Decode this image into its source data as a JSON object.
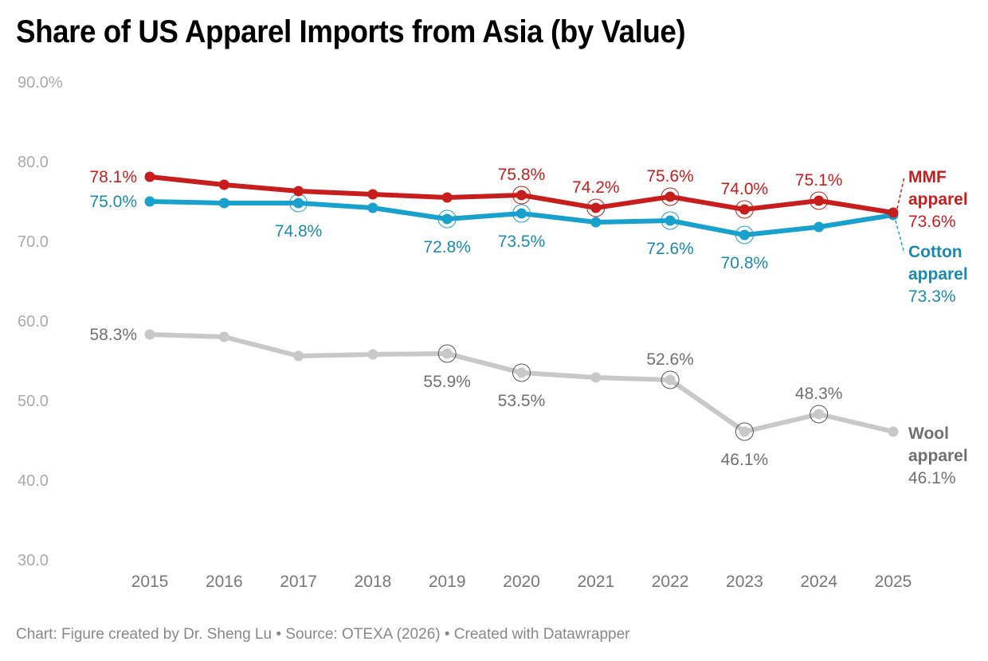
{
  "title": "Share of US Apparel Imports from Asia (by Value)",
  "footer": "Chart: Figure created by Dr. Sheng Lu • Source: OTEXA (2026) • Created with Datawrapper",
  "chart_data": {
    "type": "line",
    "title": "Share of US Apparel Imports from Asia (by Value)",
    "xlabel": "",
    "ylabel": "",
    "x": [
      "2015",
      "2016",
      "2017",
      "2018",
      "2019",
      "2020",
      "2021",
      "2022",
      "2023",
      "2024",
      "2025"
    ],
    "ylim": [
      30,
      90
    ],
    "yticks": [
      30,
      40,
      50,
      60,
      70,
      80,
      90
    ],
    "ytick_labels": [
      "30.0",
      "40.0",
      "50.0",
      "60.0",
      "70.0",
      "80.0",
      "90.0%"
    ],
    "grid": false,
    "legend": "direct labels at line ends (right)",
    "series": [
      {
        "name": "MMF apparel",
        "end_label_name": [
          "MMF",
          "apparel"
        ],
        "end_label_value": "73.6%",
        "color": "#c71e1d",
        "values": [
          78.1,
          77.1,
          76.3,
          75.9,
          75.5,
          75.8,
          74.2,
          75.6,
          74.0,
          75.1,
          73.6
        ],
        "labels": [
          {
            "index": 0,
            "text": "78.1%",
            "pos": "left"
          },
          {
            "index": 5,
            "text": "75.8%",
            "pos": "above"
          },
          {
            "index": 6,
            "text": "74.2%",
            "pos": "above"
          },
          {
            "index": 7,
            "text": "75.6%",
            "pos": "above"
          },
          {
            "index": 8,
            "text": "74.0%",
            "pos": "above"
          },
          {
            "index": 9,
            "text": "75.1%",
            "pos": "above"
          }
        ],
        "highlighted": [
          5,
          6,
          7,
          8,
          9
        ]
      },
      {
        "name": "Cotton apparel",
        "end_label_name": [
          "Cotton",
          "apparel"
        ],
        "end_label_value": "73.3%",
        "color": "#18a1cd",
        "label_color": "#1a8ab0",
        "values": [
          75.0,
          74.8,
          74.8,
          74.2,
          72.8,
          73.5,
          72.4,
          72.6,
          70.8,
          71.8,
          73.3
        ],
        "labels": [
          {
            "index": 0,
            "text": "75.0%",
            "pos": "left"
          },
          {
            "index": 2,
            "text": "74.8%",
            "pos": "below"
          },
          {
            "index": 4,
            "text": "72.8%",
            "pos": "below"
          },
          {
            "index": 5,
            "text": "73.5%",
            "pos": "below"
          },
          {
            "index": 7,
            "text": "72.6%",
            "pos": "below"
          },
          {
            "index": 8,
            "text": "70.8%",
            "pos": "below"
          }
        ],
        "highlighted": [
          2,
          4,
          5,
          7,
          8
        ]
      },
      {
        "name": "Wool apparel",
        "end_label_name": [
          "Wool",
          "apparel"
        ],
        "end_label_value": "46.1%",
        "color": "#c8c8c8",
        "label_color": "#707070",
        "values": [
          58.3,
          58.0,
          55.6,
          55.8,
          55.9,
          53.5,
          52.9,
          52.6,
          46.1,
          48.3,
          46.1
        ],
        "labels": [
          {
            "index": 0,
            "text": "58.3%",
            "pos": "left"
          },
          {
            "index": 4,
            "text": "55.9%",
            "pos": "below"
          },
          {
            "index": 5,
            "text": "53.5%",
            "pos": "below"
          },
          {
            "index": 7,
            "text": "52.6%",
            "pos": "above"
          },
          {
            "index": 8,
            "text": "46.1%",
            "pos": "below"
          },
          {
            "index": 9,
            "text": "48.3%",
            "pos": "above"
          }
        ],
        "highlighted": [
          4,
          5,
          7,
          8,
          9
        ]
      }
    ]
  }
}
